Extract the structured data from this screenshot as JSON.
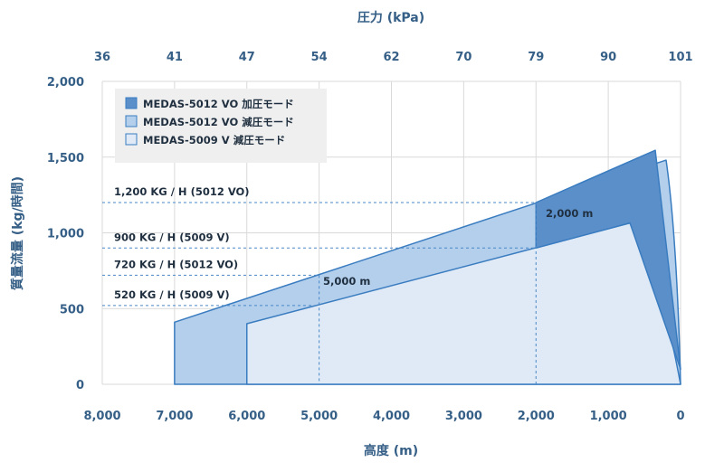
{
  "chart_data": {
    "type": "area",
    "top_axis_title": "圧力 (kPa)",
    "top_tick_labels": [
      "36",
      "41",
      "47",
      "54",
      "62",
      "70",
      "79",
      "90",
      "101"
    ],
    "x_axis_title": "高度 (m)",
    "x_tick_labels": [
      "8,000",
      "7,000",
      "6,000",
      "5,000",
      "4,000",
      "3,000",
      "2,000",
      "1,000",
      "0"
    ],
    "y_axis_title": "質量流量 (kg/時間)",
    "y_tick_labels": [
      "0",
      "500",
      "1,000",
      "1,500",
      "2,000"
    ],
    "xlim": [
      8000,
      0
    ],
    "ylim": [
      0,
      2000
    ],
    "grid": true,
    "legend_position": "top-left",
    "series": [
      {
        "name": "MEDAS-5012 VO 加圧モード",
        "color": "#5b8fca",
        "points": [
          [
            2000,
            900
          ],
          [
            2000,
            1200
          ],
          [
            350,
            1545
          ],
          [
            0,
            100
          ]
        ]
      },
      {
        "name": "MEDAS-5012 VO 減圧モード",
        "color": "#b3cfec",
        "points": [
          [
            7000,
            0
          ],
          [
            7000,
            410
          ],
          [
            200,
            1480
          ],
          [
            0,
            0
          ]
        ]
      },
      {
        "name": "MEDAS-5009 V 減圧モード",
        "color": "#dfeaf6",
        "points": [
          [
            6000,
            0
          ],
          [
            6000,
            400
          ],
          [
            700,
            1065
          ],
          [
            0,
            0
          ]
        ]
      }
    ],
    "reference_lines": [
      {
        "label": "1,200 KG / H (5012 VO)",
        "y": 1200,
        "x_end": 2000
      },
      {
        "label": "900 KG / H (5009 V)",
        "y": 900,
        "x_end": 2000
      },
      {
        "label": "720 KG / H (5012 VO)",
        "y": 720,
        "x_end": 5000
      },
      {
        "label": "520 KG / H (5009 V)",
        "y": 520,
        "x_end": 5000
      }
    ],
    "vertical_markers": [
      {
        "label": "5,000 m",
        "x": 5000
      },
      {
        "label": "2,000 m",
        "x": 2000
      }
    ]
  }
}
